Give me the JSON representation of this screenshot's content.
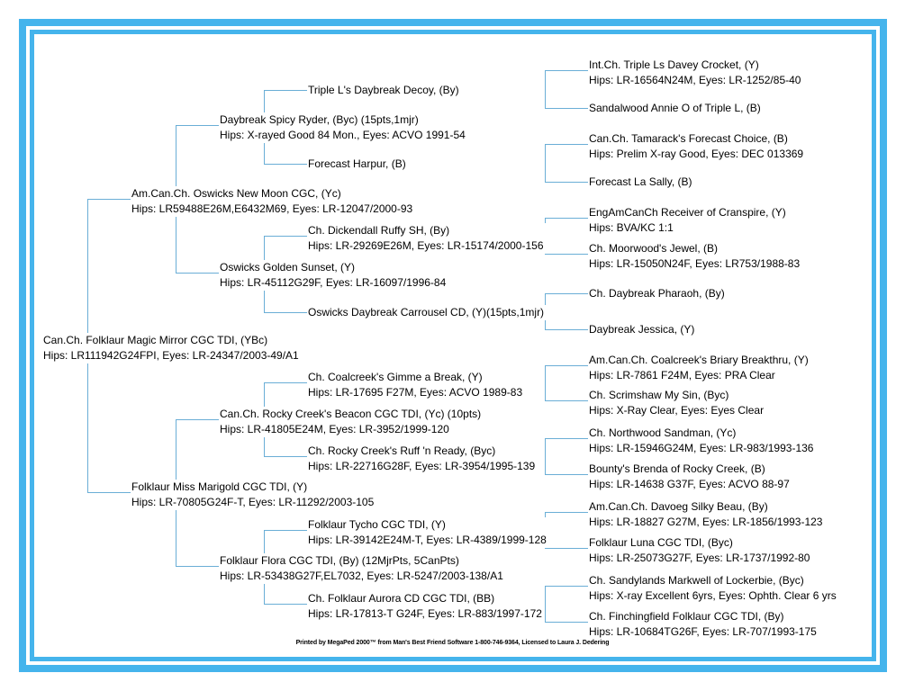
{
  "colors": {
    "frame": "#45b4ec",
    "connector": "#6aaed6",
    "text": "#000000"
  },
  "dogs": [
    {
      "line1": "Can.Ch. Folklaur Magic Mirror CGC TDI,  (YBc)",
      "line2": "Hips: LR111942G24FPI, Eyes: LR-24347/2003-49/A1"
    },
    {
      "line1": "Am.Can.Ch. Oswicks New Moon CGC,  (Yc)",
      "line2": "Hips: LR59488E26M,E6432M69, Eyes: LR-12047/2000-93"
    },
    {
      "line1": "Folklaur Miss Marigold CGC TDI,  (Y)",
      "line2": "Hips: LR-70805G24F-T, Eyes: LR-11292/2003-105"
    },
    {
      "line1": "Daybreak Spicy Ryder,  (Byc) (15pts,1mjr)",
      "line2": "Hips: X-rayed Good 84 Mon., Eyes: ACVO 1991-54"
    },
    {
      "line1": "Oswicks Golden Sunset,  (Y)",
      "line2": "Hips: LR-45112G29F, Eyes: LR-16097/1996-84"
    },
    {
      "line1": "Can.Ch. Rocky Creek's Beacon CGC TDI,  (Yc) (10pts)",
      "line2": "Hips: LR-41805E24M, Eyes: LR-3952/1999-120"
    },
    {
      "line1": "Folklaur Flora CGC TDI,  (By) (12MjrPts, 5CanPts)",
      "line2": "Hips: LR-53438G27F,EL7032, Eyes: LR-5247/2003-138/A1"
    },
    {
      "line1": "Triple L's Daybreak Decoy,  (By)",
      "line2": ""
    },
    {
      "line1": "Forecast Harpur,  (B)",
      "line2": ""
    },
    {
      "line1": "Ch. Dickendall Ruffy SH,  (By)",
      "line2": "Hips: LR-29269E26M, Eyes: LR-15174/2000-156"
    },
    {
      "line1": "Oswicks Daybreak Carrousel CD,  (Y)(15pts,1mjr)",
      "line2": ""
    },
    {
      "line1": "Ch. Coalcreek's Gimme a Break,  (Y)",
      "line2": "Hips: LR-17695 F27M, Eyes: ACVO 1989-83"
    },
    {
      "line1": "Ch. Rocky Creek's Ruff 'n Ready,  (Byc)",
      "line2": "Hips: LR-22716G28F, Eyes: LR-3954/1995-139"
    },
    {
      "line1": "Folklaur Tycho CGC TDI,  (Y)",
      "line2": "Hips: LR-39142E24M-T, Eyes: LR-4389/1999-128"
    },
    {
      "line1": "Ch. Folklaur Aurora CD CGC TDI,  (BB)",
      "line2": "Hips: LR-17813-T G24F, Eyes: LR-883/1997-172"
    },
    {
      "line1": "Int.Ch. Triple Ls Davey Crocket,  (Y)",
      "line2": "Hips: LR-16564N24M, Eyes: LR-1252/85-40"
    },
    {
      "line1": "Sandalwood Annie O of Triple L,  (B)",
      "line2": ""
    },
    {
      "line1": "Can.Ch. Tamarack's Forecast Choice,  (B)",
      "line2": "Hips: Prelim X-ray Good, Eyes: DEC 013369"
    },
    {
      "line1": "Forecast La Sally,  (B)",
      "line2": ""
    },
    {
      "line1": "EngAmCanCh Receiver of Cranspire,  (Y)",
      "line2": "Hips: BVA/KC 1:1"
    },
    {
      "line1": "Ch. Moorwood's Jewel,  (B)",
      "line2": "Hips: LR-15050N24F, Eyes: LR753/1988-83"
    },
    {
      "line1": "Ch. Daybreak Pharaoh,  (By)",
      "line2": ""
    },
    {
      "line1": "Daybreak Jessica,  (Y)",
      "line2": ""
    },
    {
      "line1": "Am.Can.Ch. Coalcreek's Briary Breakthru,  (Y)",
      "line2": "Hips: LR-7861 F24M, Eyes: PRA Clear"
    },
    {
      "line1": "Ch. Scrimshaw My Sin,  (Byc)",
      "line2": "Hips: X-Ray Clear, Eyes: Eyes Clear"
    },
    {
      "line1": "Ch. Northwood Sandman,  (Yc)",
      "line2": "Hips: LR-15946G24M, Eyes: LR-983/1993-136"
    },
    {
      "line1": "Bounty's Brenda of Rocky Creek,  (B)",
      "line2": "Hips: LR-14638 G37F, Eyes: ACVO 88-97"
    },
    {
      "line1": "Am.Can.Ch. Davoeg Silky Beau,  (By)",
      "line2": "Hips: LR-18827 G27M, Eyes: LR-1856/1993-123"
    },
    {
      "line1": "Folklaur Luna CGC TDI,  (Byc)",
      "line2": "Hips: LR-25073G27F, Eyes: LR-1737/1992-80"
    },
    {
      "line1": "Ch. Sandylands Markwell of Lockerbie,  (Byc)",
      "line2": "Hips: X-ray Excellent 6yrs, Eyes: Ophth. Clear 6 yrs"
    },
    {
      "line1": "Ch. Finchingfield Folklaur CGC TDI,  (By)",
      "line2": "Hips: LR-10684TG26F, Eyes: LR-707/1993-175"
    }
  ],
  "footer": "Printed by MegaPed 2000™ from Man's Best Friend Software 1-800-746-9364, Licensed to Laura J. Dedering"
}
